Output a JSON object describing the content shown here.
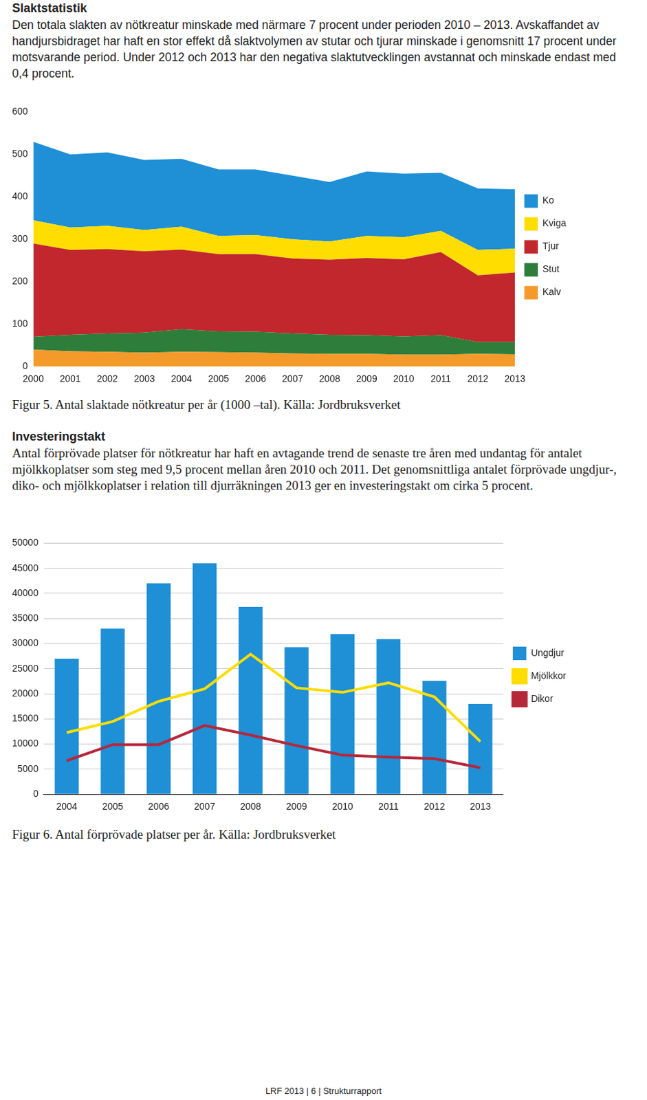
{
  "document": {
    "sections": [
      {
        "heading": "Slaktstatistik",
        "text": "Den totala slakten av nötkreatur minskade med närmare 7 procent under perioden 2010 – 2013. Avskaffandet av handjursbidraget har haft en stor effekt då slaktvolymen av stutar och tjurar minskade i genomsnitt 17 procent under motsvarande period. Under 2012 och 2013 har den negativa slaktutvecklingen avstannat  och minskade endast med 0,4 procent.",
        "caption": "Figur 5. Antal slaktade nötkreatur per år (1000 –tal). Källa: Jordbruksverket"
      },
      {
        "heading": "Investeringstakt",
        "text": "Antal förprövade platser för nötkreatur har haft en avtagande trend de senaste tre åren med undantag för antalet mjölkkoplatser som steg med 9,5 procent mellan åren 2010 och 2011. Det genomsnittliga antalet förprövade ungdjur-, diko- och mjölkkoplatser i relation till djurräkningen 2013 ger en investeringstakt om cirka 5 procent.",
        "caption": "Figur 6. Antal förprövade platser per år. Källa: Jordbruksverket"
      }
    ],
    "footer": "LRF 2013  | 6 |  Strukturrapport"
  },
  "chart_data": [
    {
      "type": "area",
      "stacked": true,
      "grid": false,
      "legend": "right",
      "categories": [
        "2000",
        "2001",
        "2002",
        "2003",
        "2004",
        "2005",
        "2006",
        "2007",
        "2008",
        "2009",
        "2010",
        "2011",
        "2012",
        "2013"
      ],
      "ylim": [
        0,
        600
      ],
      "yticks": [
        0,
        100,
        200,
        300,
        400,
        500,
        600
      ],
      "series": [
        {
          "name": "Kalv",
          "color": "#f39a2b",
          "values": [
            40,
            36,
            35,
            33,
            35,
            34,
            33,
            31,
            30,
            30,
            28,
            28,
            30,
            29
          ]
        },
        {
          "name": "Stut",
          "color": "#2e7d3a",
          "values": [
            30,
            39,
            43,
            47,
            53,
            49,
            49,
            47,
            45,
            44,
            43,
            46,
            28,
            29
          ]
        },
        {
          "name": "Tjur",
          "color": "#c1272d",
          "values": [
            220,
            200,
            199,
            192,
            188,
            182,
            183,
            177,
            177,
            182,
            182,
            196,
            157,
            164
          ]
        },
        {
          "name": "Kviga",
          "color": "#ffdd00",
          "values": [
            55,
            53,
            55,
            50,
            54,
            43,
            45,
            45,
            43,
            52,
            52,
            50,
            60,
            56
          ]
        },
        {
          "name": "Ko",
          "color": "#1f8fd6",
          "values": [
            185,
            172,
            173,
            165,
            160,
            157,
            155,
            150,
            140,
            152,
            150,
            137,
            145,
            140
          ]
        }
      ]
    },
    {
      "type": "bar",
      "grid": true,
      "legend": "right",
      "categories": [
        "2004",
        "2005",
        "2006",
        "2007",
        "2008",
        "2009",
        "2010",
        "2011",
        "2012",
        "2013"
      ],
      "ylim": [
        0,
        50000
      ],
      "yticks": [
        0,
        5000,
        10000,
        15000,
        20000,
        25000,
        30000,
        35000,
        40000,
        45000,
        50000
      ],
      "series": [
        {
          "name": "Ungdjur",
          "type": "bar",
          "color": "#1f8fd6",
          "values": [
            27000,
            33000,
            42000,
            46000,
            37300,
            29300,
            31900,
            30900,
            22600,
            18000
          ]
        },
        {
          "name": "Mjölkkor",
          "type": "line",
          "color": "#ffdd00",
          "values": [
            12300,
            14500,
            18500,
            21000,
            27900,
            21200,
            20300,
            22200,
            19400,
            10500
          ]
        },
        {
          "name": "Dikor",
          "type": "line",
          "color": "#b5283a",
          "values": [
            6700,
            9900,
            9900,
            13700,
            11800,
            9700,
            7800,
            7400,
            7100,
            5300
          ]
        }
      ]
    }
  ]
}
